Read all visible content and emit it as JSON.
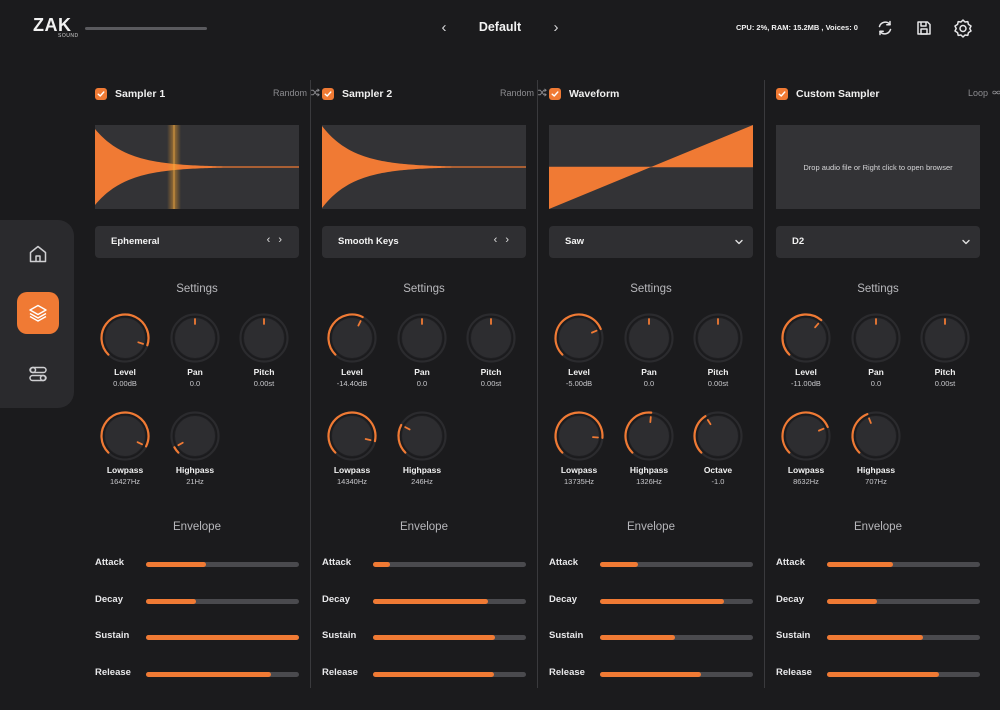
{
  "logo": {
    "text": "ZAK",
    "sub": "SOUND"
  },
  "header": {
    "meter_level": 0.0,
    "preset_name": "Default",
    "prev_glyph": "‹",
    "next_glyph": "›",
    "stats": "CPU: 2%, RAM: 15.2MB , Voices: 0",
    "icons": [
      "refresh-icon",
      "save-icon",
      "settings-icon"
    ]
  },
  "sidebar": {
    "items": [
      {
        "name": "home-icon",
        "active": false
      },
      {
        "name": "layers-icon",
        "active": true
      },
      {
        "name": "toggles-icon",
        "active": false
      }
    ]
  },
  "colors": {
    "accent": "#f07a34",
    "panel": "#2f2f32",
    "background": "#1b1b1d"
  },
  "panels": [
    {
      "title": "Sampler 1",
      "mode": "Random",
      "mode_icon": "shuffle-icon",
      "waveform": "sample-decay-playhead",
      "selector": "Ephemeral",
      "selector_kind": "arrows",
      "settings_title": "Settings",
      "knobs": [
        {
          "label": "Level",
          "value": "0.00dB",
          "pos": 0.9
        },
        {
          "label": "Pan",
          "value": "0.0",
          "pos": 0.5
        },
        {
          "label": "Pitch",
          "value": "0.00st",
          "pos": 0.5
        },
        {
          "label": "Lowpass",
          "value": "16427Hz",
          "pos": 0.93
        },
        {
          "label": "Highpass",
          "value": "21Hz",
          "pos": 0.06
        }
      ],
      "envelope_title": "Envelope",
      "envelope": [
        {
          "label": "Attack",
          "value": 0.39
        },
        {
          "label": "Decay",
          "value": 0.33
        },
        {
          "label": "Sustain",
          "value": 1.0
        },
        {
          "label": "Release",
          "value": 0.82
        }
      ]
    },
    {
      "title": "Sampler 2",
      "mode": "Random",
      "mode_icon": "shuffle-icon",
      "waveform": "sample-decay",
      "selector": "Smooth Keys",
      "selector_kind": "arrows",
      "settings_title": "Settings",
      "knobs": [
        {
          "label": "Level",
          "value": "-14.40dB",
          "pos": 0.6
        },
        {
          "label": "Pan",
          "value": "0.0",
          "pos": 0.5
        },
        {
          "label": "Pitch",
          "value": "0.00st",
          "pos": 0.5
        },
        {
          "label": "Lowpass",
          "value": "14340Hz",
          "pos": 0.88
        },
        {
          "label": "Highpass",
          "value": "246Hz",
          "pos": 0.27
        }
      ],
      "envelope_title": "Envelope",
      "envelope": [
        {
          "label": "Attack",
          "value": 0.11
        },
        {
          "label": "Decay",
          "value": 0.75
        },
        {
          "label": "Sustain",
          "value": 0.8
        },
        {
          "label": "Release",
          "value": 0.79
        }
      ]
    },
    {
      "title": "Waveform",
      "mode": "",
      "mode_icon": "",
      "waveform": "saw",
      "selector": "Saw",
      "selector_kind": "dropdown",
      "settings_title": "Settings",
      "knobs": [
        {
          "label": "Level",
          "value": "-5.00dB",
          "pos": 0.75
        },
        {
          "label": "Pan",
          "value": "0.0",
          "pos": 0.5
        },
        {
          "label": "Pitch",
          "value": "0.00st",
          "pos": 0.5
        },
        {
          "label": "Lowpass",
          "value": "13735Hz",
          "pos": 0.85
        },
        {
          "label": "Highpass",
          "value": "1326Hz",
          "pos": 0.52
        },
        {
          "label": "Octave",
          "value": "-1.0",
          "pos": 0.38
        }
      ],
      "envelope_title": "Envelope",
      "envelope": [
        {
          "label": "Attack",
          "value": 0.25
        },
        {
          "label": "Decay",
          "value": 0.81
        },
        {
          "label": "Sustain",
          "value": 0.49
        },
        {
          "label": "Release",
          "value": 0.66
        }
      ]
    },
    {
      "title": "Custom Sampler",
      "mode": "Loop",
      "mode_icon": "infinity-icon",
      "waveform": "empty",
      "drop_text": "Drop audio file or Right click to open browser",
      "selector": "D2",
      "selector_kind": "dropdown",
      "settings_title": "Settings",
      "knobs": [
        {
          "label": "Level",
          "value": "-11.00dB",
          "pos": 0.65
        },
        {
          "label": "Pan",
          "value": "0.0",
          "pos": 0.5
        },
        {
          "label": "Pitch",
          "value": "0.00st",
          "pos": 0.5
        },
        {
          "label": "Lowpass",
          "value": "8632Hz",
          "pos": 0.75
        },
        {
          "label": "Highpass",
          "value": "707Hz",
          "pos": 0.42
        }
      ],
      "envelope_title": "Envelope",
      "envelope": [
        {
          "label": "Attack",
          "value": 0.43
        },
        {
          "label": "Decay",
          "value": 0.33
        },
        {
          "label": "Sustain",
          "value": 0.63
        },
        {
          "label": "Release",
          "value": 0.73
        }
      ]
    }
  ]
}
